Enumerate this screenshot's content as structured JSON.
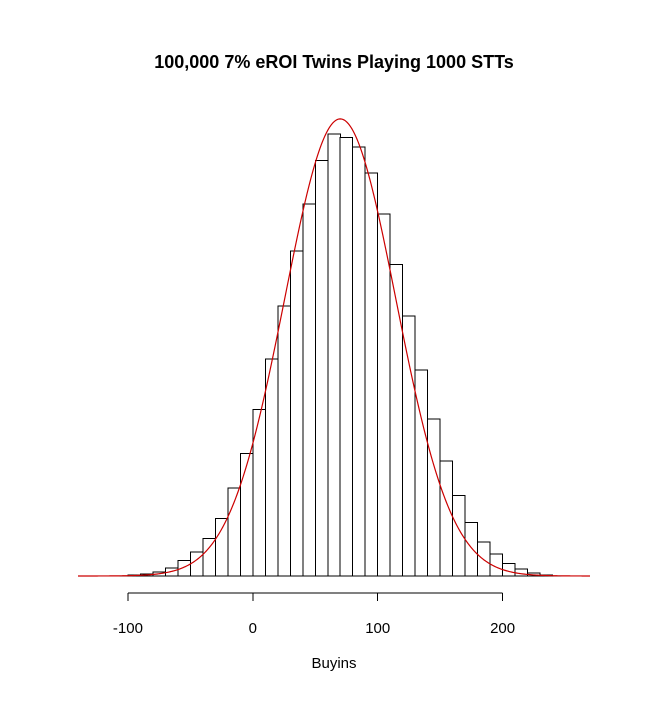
{
  "chart_data": {
    "type": "bar",
    "title": "100,000 7% eROI Twins Playing 1000 STTs",
    "xlabel": "Buyins",
    "ylabel": "",
    "xlim": [
      -140,
      270
    ],
    "ylim": [
      0,
      0.0091
    ],
    "x_ticks": [
      -100,
      0,
      100,
      200
    ],
    "x_tick_labels": [
      "-100",
      "0",
      "100",
      "200"
    ],
    "bin_width": 10,
    "bins": [
      {
        "x0": -100,
        "x1": -90,
        "density": 2e-05
      },
      {
        "x0": -90,
        "x1": -80,
        "density": 4e-05
      },
      {
        "x0": -80,
        "x1": -70,
        "density": 8e-05
      },
      {
        "x0": -70,
        "x1": -60,
        "density": 0.00016
      },
      {
        "x0": -60,
        "x1": -50,
        "density": 0.0003
      },
      {
        "x0": -50,
        "x1": -40,
        "density": 0.00047
      },
      {
        "x0": -40,
        "x1": -30,
        "density": 0.00074
      },
      {
        "x0": -30,
        "x1": -20,
        "density": 0.00113
      },
      {
        "x0": -20,
        "x1": -10,
        "density": 0.00173
      },
      {
        "x0": -10,
        "x1": 0,
        "density": 0.0024
      },
      {
        "x0": 0,
        "x1": 10,
        "density": 0.00327
      },
      {
        "x0": 10,
        "x1": 20,
        "density": 0.00426
      },
      {
        "x0": 20,
        "x1": 30,
        "density": 0.0053
      },
      {
        "x0": 30,
        "x1": 40,
        "density": 0.00637
      },
      {
        "x0": 40,
        "x1": 50,
        "density": 0.0073
      },
      {
        "x0": 50,
        "x1": 60,
        "density": 0.00815
      },
      {
        "x0": 60,
        "x1": 70,
        "density": 0.00867
      },
      {
        "x0": 70,
        "x1": 80,
        "density": 0.0086
      },
      {
        "x0": 80,
        "x1": 90,
        "density": 0.00841
      },
      {
        "x0": 90,
        "x1": 100,
        "density": 0.0079
      },
      {
        "x0": 100,
        "x1": 110,
        "density": 0.0071
      },
      {
        "x0": 110,
        "x1": 120,
        "density": 0.00611
      },
      {
        "x0": 120,
        "x1": 130,
        "density": 0.0051
      },
      {
        "x0": 130,
        "x1": 140,
        "density": 0.00404
      },
      {
        "x0": 140,
        "x1": 150,
        "density": 0.00308
      },
      {
        "x0": 150,
        "x1": 160,
        "density": 0.00226
      },
      {
        "x0": 160,
        "x1": 170,
        "density": 0.00158
      },
      {
        "x0": 170,
        "x1": 180,
        "density": 0.00105
      },
      {
        "x0": 180,
        "x1": 190,
        "density": 0.00067
      },
      {
        "x0": 190,
        "x1": 200,
        "density": 0.00043
      },
      {
        "x0": 200,
        "x1": 210,
        "density": 0.00025
      },
      {
        "x0": 210,
        "x1": 220,
        "density": 0.00014
      },
      {
        "x0": 220,
        "x1": 230,
        "density": 6e-05
      },
      {
        "x0": 230,
        "x1": 240,
        "density": 2e-05
      }
    ],
    "density_curve": {
      "type": "normal",
      "mean": 70,
      "sd": 44.5,
      "color": "#cc0000"
    },
    "grid": false,
    "legend": "none"
  }
}
